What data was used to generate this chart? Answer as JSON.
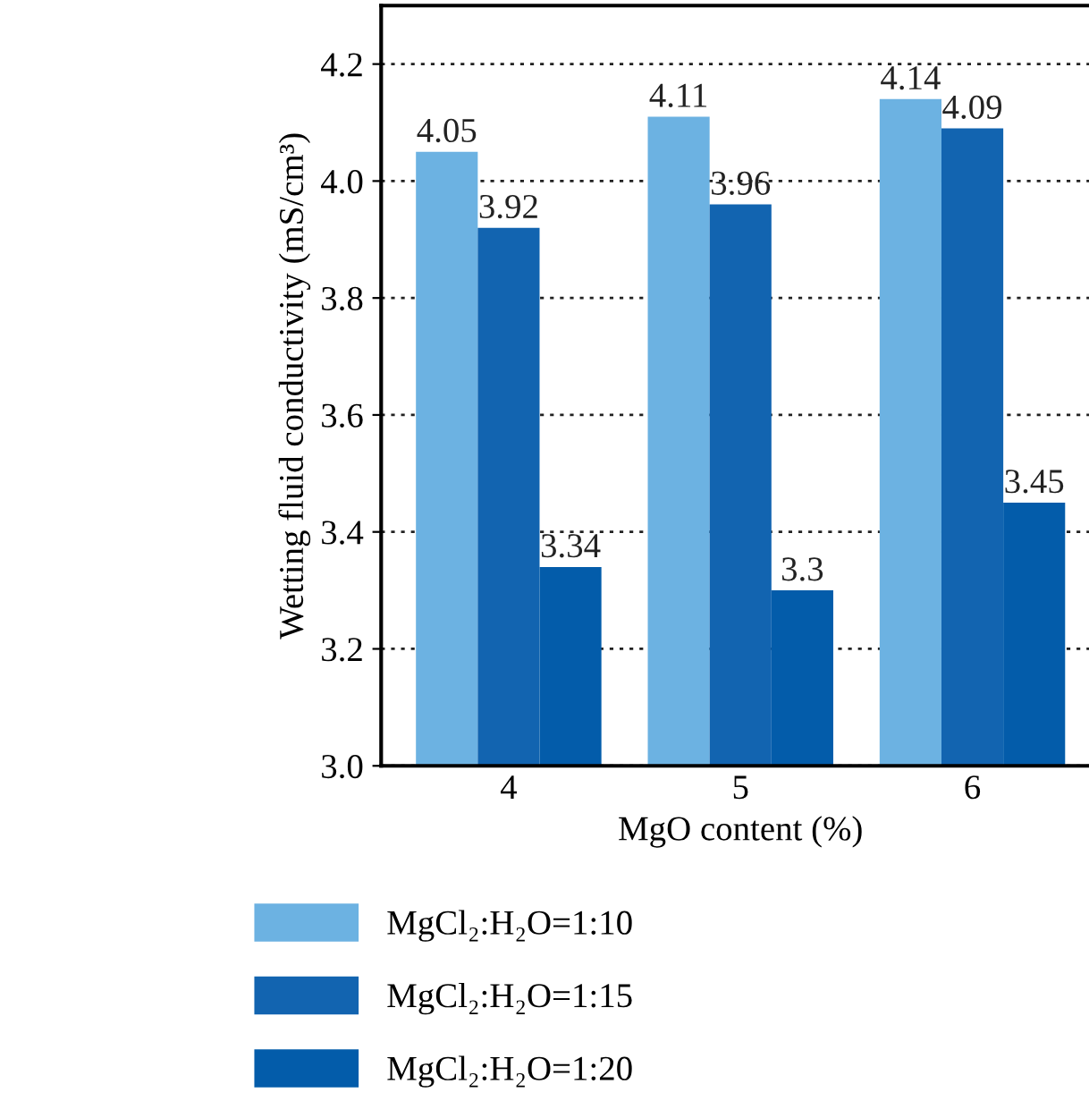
{
  "chart_data": {
    "type": "bar",
    "xlabel": "MgO content (%)",
    "ylabel": "Wetting fluid conductivity (mS/cm³)",
    "categories": [
      "4",
      "5",
      "6"
    ],
    "series": [
      {
        "name": "MgCl₂:H₂O=1:10",
        "color": "#6cb2e2",
        "values": [
          4.05,
          4.11,
          4.14
        ]
      },
      {
        "name": "MgCl₂:H₂O=1:15",
        "color": "#1264b0",
        "values": [
          3.92,
          3.96,
          4.09
        ]
      },
      {
        "name": "MgCl₂:H₂O=1:20",
        "color": "#035caa",
        "values": [
          3.34,
          3.3,
          3.45
        ]
      }
    ],
    "ylim": [
      3.0,
      4.3
    ],
    "yticks": [
      {
        "value": 3.0,
        "label": "3.0"
      },
      3.2,
      3.4,
      3.6,
      3.8,
      {
        "value": 4.0,
        "label": "4.0"
      },
      4.2
    ],
    "data_labels": true,
    "grid": "y",
    "legend": "bottom"
  }
}
